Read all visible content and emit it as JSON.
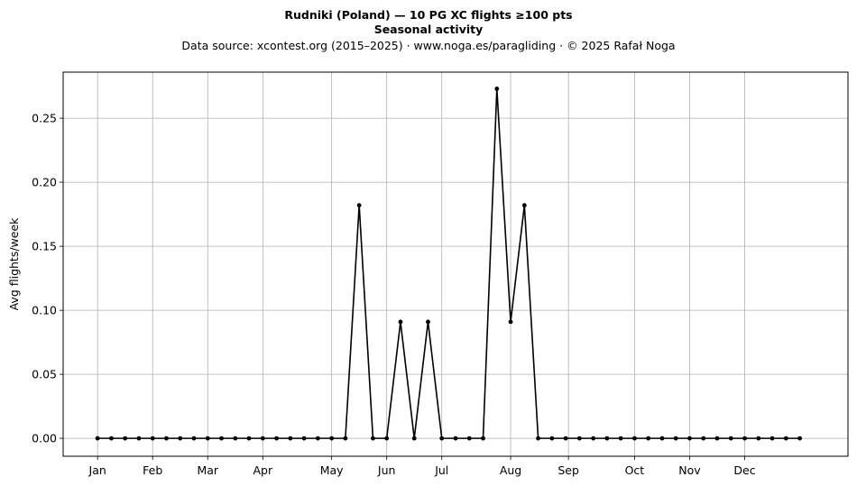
{
  "chart_data": {
    "type": "line",
    "title": "Rudniki (Poland)  —  10 PG XC flights ≥100 pts",
    "subtitle": "Seasonal activity",
    "source_line": "Data source: xcontest.org (2015–2025)  ·  www.noga.es/paragliding  ·  © 2025 Rafał Noga",
    "xlabel": "",
    "ylabel": "Avg flights/week",
    "ylim": [
      -0.014,
      0.286
    ],
    "xlim": [
      -2.5,
      54.5
    ],
    "yticks": [
      0.0,
      0.05,
      0.1,
      0.15,
      0.2,
      0.25
    ],
    "ytick_labels": [
      "0.00",
      "0.05",
      "0.10",
      "0.15",
      "0.20",
      "0.25"
    ],
    "month_ticks": [
      {
        "label": "Jan",
        "week": 0
      },
      {
        "label": "Feb",
        "week": 4
      },
      {
        "label": "Mar",
        "week": 8
      },
      {
        "label": "Apr",
        "week": 12
      },
      {
        "label": "May",
        "week": 17
      },
      {
        "label": "Jun",
        "week": 21
      },
      {
        "label": "Jul",
        "week": 25
      },
      {
        "label": "Aug",
        "week": 30
      },
      {
        "label": "Sep",
        "week": 34.2
      },
      {
        "label": "Oct",
        "week": 39
      },
      {
        "label": "Nov",
        "week": 43
      },
      {
        "label": "Dec",
        "week": 47
      }
    ],
    "grid": true,
    "series": [
      {
        "color": "#000000",
        "x": [
          0,
          1,
          2,
          3,
          4,
          5,
          6,
          7,
          8,
          9,
          10,
          11,
          12,
          13,
          14,
          15,
          16,
          17,
          18,
          19,
          20,
          21,
          22,
          23,
          24,
          25,
          26,
          27,
          28,
          29,
          30,
          31,
          32,
          33,
          34,
          35,
          36,
          37,
          38,
          39,
          40,
          41,
          42,
          43,
          44,
          45,
          46,
          47,
          48,
          49,
          50,
          51
        ],
        "values": [
          0,
          0,
          0,
          0,
          0,
          0,
          0,
          0,
          0,
          0,
          0,
          0,
          0,
          0,
          0,
          0,
          0,
          0,
          0,
          0.182,
          0,
          0,
          0.091,
          0,
          0.091,
          0,
          0,
          0,
          0,
          0.273,
          0.091,
          0.182,
          0,
          0,
          0,
          0,
          0,
          0,
          0,
          0,
          0,
          0,
          0,
          0,
          0,
          0,
          0,
          0,
          0,
          0,
          0,
          0
        ]
      }
    ]
  }
}
